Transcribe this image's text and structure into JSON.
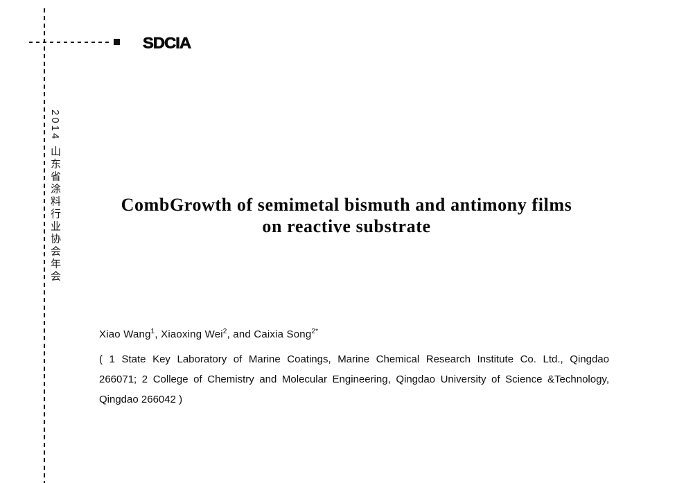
{
  "header": {
    "logo_text": "SDCIA"
  },
  "sidebar": {
    "vertical_label": "2014 山东省涂料行业协会年会"
  },
  "title": {
    "line1": "CombGrowth of semimetal bismuth and antimony films",
    "line2": "on reactive substrate"
  },
  "authors": {
    "segments": [
      {
        "text": "Xiao Wang"
      },
      {
        "sup": "1"
      },
      {
        "text": ", Xiaoxing Wei"
      },
      {
        "sup": "2"
      },
      {
        "text": ", and Caixia Song"
      },
      {
        "sup": "2*"
      }
    ]
  },
  "affiliation": {
    "lines": [
      "( 1 State Key Laboratory of Marine Coatings, Marine Chemical Research Institute Co. Ltd., Qingdao",
      "266071;  2 College of Chemistry and Molecular Engineering, Qingdao University of Science &Technology,",
      "Qingdao 266042 )"
    ]
  },
  "colors": {
    "ink": "#111111",
    "background": "#ffffff"
  }
}
